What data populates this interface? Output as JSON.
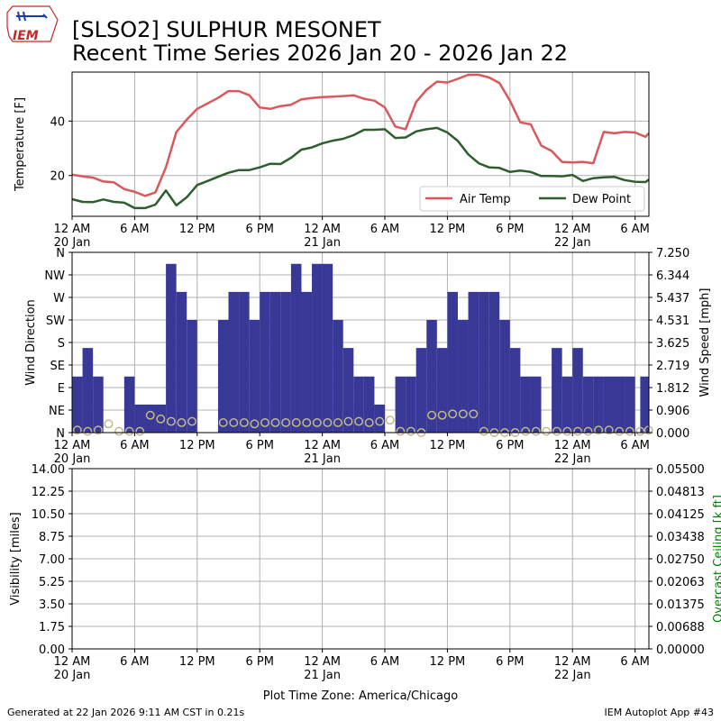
{
  "header": {
    "title_line1": "[SLSO2] SULPHUR MESONET",
    "title_line2": "Recent Time Series 2026 Jan 20 - 2026 Jan 22",
    "logo_text": "IEM"
  },
  "footer": {
    "generated": "Generated at 22 Jan 2026 9:11 AM CST in 0.21s",
    "app": "IEM Autoplot App #43",
    "timezone_label": "Plot Time Zone: America/Chicago"
  },
  "colors": {
    "air_temp": "#d9585a",
    "dew_point": "#2e5e2e",
    "wind_bar": "#383896",
    "wind_speed_marker": "#c2b98a",
    "grid": "#b0b0b0",
    "ceiling_label": "#008000"
  },
  "chart_data": [
    {
      "type": "line",
      "ylabel": "Temperature [F]",
      "xlim": [
        0,
        55.33
      ],
      "ylim": [
        5,
        58
      ],
      "yticks": [
        20,
        40
      ],
      "grid": true,
      "legend": {
        "position": "lower-right",
        "columns": 2
      },
      "x_ticks": [
        {
          "x": 0,
          "label": "12 AM",
          "sub": "20 Jan"
        },
        {
          "x": 6,
          "label": "6 AM",
          "sub": ""
        },
        {
          "x": 12,
          "label": "12 PM",
          "sub": ""
        },
        {
          "x": 18,
          "label": "6 PM",
          "sub": ""
        },
        {
          "x": 24,
          "label": "12 AM",
          "sub": "21 Jan"
        },
        {
          "x": 30,
          "label": "6 AM",
          "sub": ""
        },
        {
          "x": 36,
          "label": "12 PM",
          "sub": ""
        },
        {
          "x": 42,
          "label": "6 PM",
          "sub": ""
        },
        {
          "x": 48,
          "label": "12 AM",
          "sub": "22 Jan"
        },
        {
          "x": 54,
          "label": "6 AM",
          "sub": ""
        }
      ],
      "series": [
        {
          "name": "Air Temp",
          "points": [
            [
              0,
              20.3
            ],
            [
              1,
              19.7
            ],
            [
              2,
              19.2
            ],
            [
              3,
              17.8
            ],
            [
              4,
              17.5
            ],
            [
              5,
              15
            ],
            [
              6,
              14
            ],
            [
              7,
              12.5
            ],
            [
              8,
              13.8
            ],
            [
              9,
              23
            ],
            [
              10,
              36
            ],
            [
              11,
              40.5
            ],
            [
              12,
              44.5
            ],
            [
              13,
              46.5
            ],
            [
              14,
              48.5
            ],
            [
              15,
              51
            ],
            [
              16,
              51
            ],
            [
              17,
              49.5
            ],
            [
              18,
              45
            ],
            [
              19,
              44.5
            ],
            [
              20,
              45.5
            ],
            [
              21,
              46
            ],
            [
              22,
              48
            ],
            [
              23,
              48.5
            ],
            [
              24,
              48.8
            ],
            [
              25,
              49
            ],
            [
              26,
              49.2
            ],
            [
              27,
              49.5
            ],
            [
              28,
              48.2
            ],
            [
              29,
              47.5
            ],
            [
              30,
              45
            ],
            [
              31,
              38
            ],
            [
              32,
              37
            ],
            [
              33,
              47
            ],
            [
              34,
              51.5
            ],
            [
              35,
              54.5
            ],
            [
              36,
              54.2
            ],
            [
              37,
              55.5
            ],
            [
              38,
              57
            ],
            [
              39,
              57
            ],
            [
              40,
              56
            ],
            [
              41,
              54
            ],
            [
              42,
              47.5
            ],
            [
              43,
              39.5
            ],
            [
              44,
              38.8
            ],
            [
              45,
              31
            ],
            [
              46,
              29
            ],
            [
              47,
              25
            ],
            [
              48,
              24.8
            ],
            [
              49,
              25
            ],
            [
              50,
              24.5
            ],
            [
              51,
              36
            ],
            [
              52,
              35.5
            ],
            [
              53,
              36
            ],
            [
              54,
              35.8
            ],
            [
              55,
              34.2
            ],
            [
              55.33,
              35.5
            ]
          ]
        },
        {
          "name": "Dew Point",
          "points": [
            [
              0,
              11.3
            ],
            [
              1,
              10.3
            ],
            [
              2,
              10.2
            ],
            [
              3,
              11.2
            ],
            [
              4,
              10.3
            ],
            [
              5,
              10
            ],
            [
              6,
              8
            ],
            [
              7,
              8
            ],
            [
              8,
              9.3
            ],
            [
              9,
              14.5
            ],
            [
              10,
              9
            ],
            [
              11,
              12
            ],
            [
              12,
              16.5
            ],
            [
              13,
              18
            ],
            [
              14,
              19.5
            ],
            [
              15,
              21
            ],
            [
              16,
              22
            ],
            [
              17,
              22
            ],
            [
              18,
              23
            ],
            [
              19,
              24.3
            ],
            [
              20,
              24.2
            ],
            [
              21,
              26.5
            ],
            [
              22,
              29.5
            ],
            [
              23,
              30.3
            ],
            [
              24,
              31.8
            ],
            [
              25,
              32.8
            ],
            [
              26,
              33.5
            ],
            [
              27,
              34.8
            ],
            [
              28,
              36.8
            ],
            [
              29,
              36.8
            ],
            [
              30,
              37
            ],
            [
              31,
              33.8
            ],
            [
              32,
              34
            ],
            [
              33,
              36.2
            ],
            [
              34,
              37
            ],
            [
              35,
              37.5
            ],
            [
              36,
              35.8
            ],
            [
              37,
              32.7
            ],
            [
              38,
              27.8
            ],
            [
              39,
              24.5
            ],
            [
              40,
              23
            ],
            [
              41,
              22.8
            ],
            [
              42,
              21.3
            ],
            [
              43,
              21.8
            ],
            [
              44,
              21.3
            ],
            [
              45,
              19.8
            ],
            [
              46,
              19.8
            ],
            [
              47,
              19.7
            ],
            [
              48,
              20.2
            ],
            [
              49,
              18
            ],
            [
              50,
              19
            ],
            [
              51,
              19.3
            ],
            [
              52,
              19.5
            ],
            [
              53,
              18.3
            ],
            [
              54,
              17.7
            ],
            [
              55,
              17.6
            ],
            [
              55.33,
              18.5
            ]
          ]
        }
      ]
    },
    {
      "type": "bar",
      "ylabel": "Wind Direction",
      "ylabel_right": "Wind Speed [mph]",
      "xlim": [
        0,
        55.33
      ],
      "ylim": [
        0,
        360
      ],
      "yticks_left": [
        {
          "v": 0,
          "label": "N"
        },
        {
          "v": 45,
          "label": "NE"
        },
        {
          "v": 90,
          "label": "E"
        },
        {
          "v": 135,
          "label": "SE"
        },
        {
          "v": 180,
          "label": "S"
        },
        {
          "v": 225,
          "label": "SW"
        },
        {
          "v": 270,
          "label": "W"
        },
        {
          "v": 315,
          "label": "NW"
        },
        {
          "v": 360,
          "label": "N"
        }
      ],
      "ylim_right": [
        0,
        7.25
      ],
      "yticks_right": [
        "0.000",
        "0.906",
        "1.812",
        "2.719",
        "3.625",
        "4.531",
        "5.437",
        "6.344",
        "7.250"
      ],
      "grid": true,
      "bar_width_hours": 1,
      "direction_bars": [
        [
          0.5,
          112
        ],
        [
          1.5,
          169
        ],
        [
          2.5,
          112
        ],
        [
          5.5,
          112
        ],
        [
          6.5,
          56
        ],
        [
          7.5,
          56
        ],
        [
          8.5,
          56
        ],
        [
          9.5,
          337
        ],
        [
          10.5,
          281
        ],
        [
          11.5,
          225
        ],
        [
          14.5,
          225
        ],
        [
          15.5,
          281
        ],
        [
          16.5,
          281
        ],
        [
          17.5,
          225
        ],
        [
          18.5,
          281
        ],
        [
          19.5,
          281
        ],
        [
          20.5,
          281
        ],
        [
          21.5,
          337
        ],
        [
          22.5,
          281
        ],
        [
          23.5,
          337
        ],
        [
          24.5,
          337
        ],
        [
          25.5,
          225
        ],
        [
          26.5,
          169
        ],
        [
          27.5,
          112
        ],
        [
          28.5,
          112
        ],
        [
          29.5,
          56
        ],
        [
          31.5,
          112
        ],
        [
          32.5,
          112
        ],
        [
          33.5,
          169
        ],
        [
          34.5,
          225
        ],
        [
          35.5,
          169
        ],
        [
          36.5,
          281
        ],
        [
          37.5,
          225
        ],
        [
          38.5,
          281
        ],
        [
          39.5,
          281
        ],
        [
          40.5,
          281
        ],
        [
          41.5,
          225
        ],
        [
          42.5,
          169
        ],
        [
          43.5,
          112
        ],
        [
          44.5,
          112
        ],
        [
          46.5,
          169
        ],
        [
          47.5,
          112
        ],
        [
          48.5,
          169
        ],
        [
          49.5,
          112
        ],
        [
          50.5,
          112
        ],
        [
          51.5,
          112
        ],
        [
          52.5,
          112
        ],
        [
          53.5,
          112
        ],
        [
          55,
          112
        ]
      ],
      "speed_points": [
        [
          0.5,
          0.1
        ],
        [
          1.5,
          0.05
        ],
        [
          2.5,
          0.1
        ],
        [
          3.5,
          0.35
        ],
        [
          4.5,
          0.05
        ],
        [
          5.5,
          0.05
        ],
        [
          6.5,
          0.05
        ],
        [
          7.5,
          0.7
        ],
        [
          8.5,
          0.55
        ],
        [
          9.5,
          0.45
        ],
        [
          10.5,
          0.4
        ],
        [
          11.5,
          0.45
        ],
        [
          14.5,
          0.4
        ],
        [
          15.5,
          0.4
        ],
        [
          16.5,
          0.4
        ],
        [
          17.5,
          0.35
        ],
        [
          18.5,
          0.4
        ],
        [
          19.5,
          0.4
        ],
        [
          20.5,
          0.4
        ],
        [
          21.5,
          0.4
        ],
        [
          22.5,
          0.4
        ],
        [
          23.5,
          0.4
        ],
        [
          24.5,
          0.4
        ],
        [
          25.5,
          0.4
        ],
        [
          26.5,
          0.45
        ],
        [
          27.5,
          0.45
        ],
        [
          28.5,
          0.4
        ],
        [
          29.5,
          0.45
        ],
        [
          30.5,
          0.5
        ],
        [
          31.5,
          0.05
        ],
        [
          32.5,
          0.05
        ],
        [
          33.5,
          0.0
        ],
        [
          34.5,
          0.7
        ],
        [
          35.5,
          0.7
        ],
        [
          36.5,
          0.75
        ],
        [
          37.5,
          0.75
        ],
        [
          38.5,
          0.75
        ],
        [
          39.5,
          0.05
        ],
        [
          40.5,
          0.0
        ],
        [
          41.5,
          0.0
        ],
        [
          42.5,
          0.0
        ],
        [
          43.5,
          0.05
        ],
        [
          44.5,
          0.05
        ],
        [
          45.5,
          0.05
        ],
        [
          46.5,
          0.05
        ],
        [
          47.5,
          0.05
        ],
        [
          48.5,
          0.05
        ],
        [
          49.5,
          0.05
        ],
        [
          50.5,
          0.1
        ],
        [
          51.5,
          0.1
        ],
        [
          52.5,
          0.05
        ],
        [
          53.5,
          0.05
        ],
        [
          54.5,
          0.05
        ],
        [
          55.3,
          0.1
        ]
      ]
    },
    {
      "type": "line",
      "ylabel": "Visibility [miles]",
      "ylabel_right": "Overcast Ceiling [k ft]",
      "xlim": [
        0,
        55.33
      ],
      "ylim": [
        0,
        14
      ],
      "yticks_left": [
        "0.00",
        "1.75",
        "3.50",
        "5.25",
        "7.00",
        "8.75",
        "10.50",
        "12.25",
        "14.00"
      ],
      "ylim_right": [
        0,
        0.055
      ],
      "yticks_right": [
        "0.00000",
        "0.00688",
        "0.01375",
        "0.02063",
        "0.02750",
        "0.03438",
        "0.04125",
        "0.04813",
        "0.05500"
      ],
      "grid": true,
      "series": []
    }
  ]
}
